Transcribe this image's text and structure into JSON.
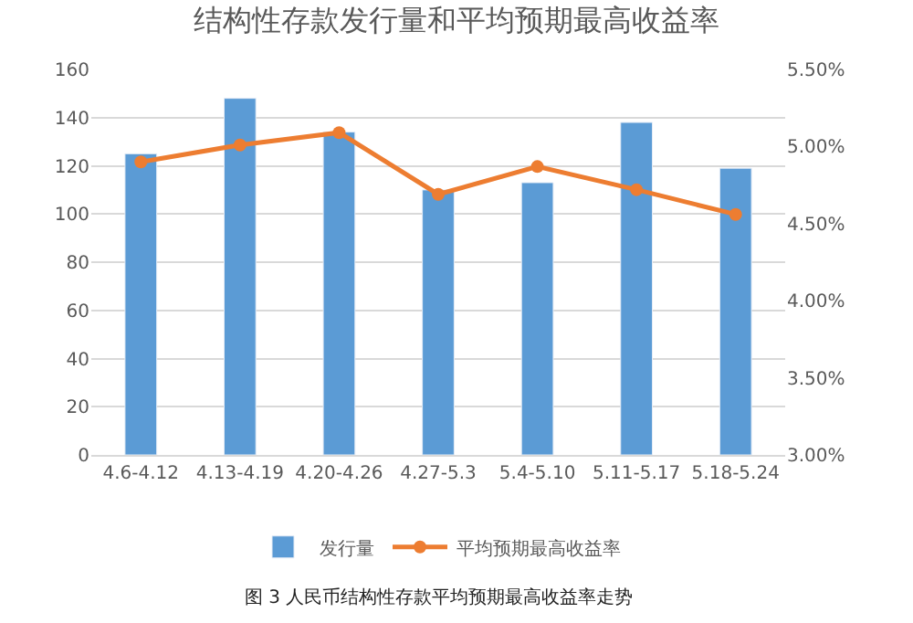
{
  "chart_data": {
    "type": "bar",
    "title": "结构性存款发行量和平均预期最高收益率",
    "categories": [
      "4.6-4.12",
      "4.13-4.19",
      "4.20-4.26",
      "4.27-5.3",
      "5.4-5.10",
      "5.11-5.17",
      "5.18-5.24"
    ],
    "series": [
      {
        "name": "发行量",
        "color": "#5b9bd5",
        "values": [
          125,
          148,
          134,
          110,
          113,
          138,
          119
        ]
      },
      {
        "name": "平均预期最高收益率",
        "type": "line",
        "axis": "y2",
        "color": "#ed7d31",
        "marker": "circle",
        "values": [
          4.9,
          5.01,
          5.09,
          4.69,
          4.87,
          4.72,
          4.56
        ]
      }
    ],
    "ylim": [
      0,
      160
    ],
    "yticks": [
      0,
      20,
      40,
      60,
      80,
      100,
      120,
      140,
      160
    ],
    "y2lim": [
      3.0,
      5.5
    ],
    "y2ticks": [
      {
        "value": 3.0,
        "label": "3.00%"
      },
      {
        "value": 3.5,
        "label": "3.50%"
      },
      {
        "value": 4.0,
        "label": "4.00%"
      },
      {
        "value": 4.5,
        "label": "4.50%"
      },
      {
        "value": 5.0,
        "label": "5.00%"
      },
      {
        "value": 5.5,
        "label": "5.50%"
      }
    ],
    "grid": "y",
    "legend": "bottom",
    "annotations": [
      "图 3 人民币结构性存款平均预期最高收益率走势"
    ]
  }
}
